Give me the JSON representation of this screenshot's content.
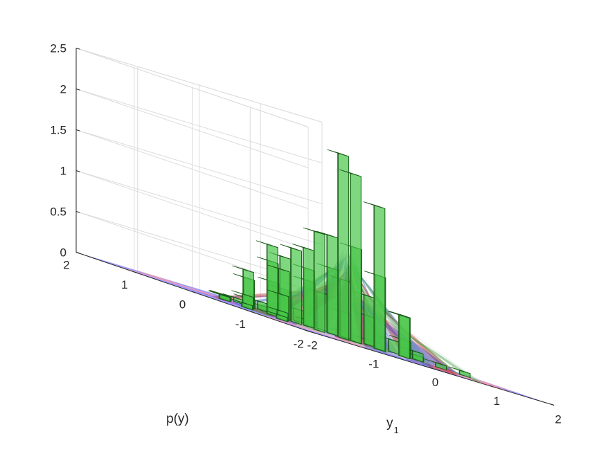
{
  "chart_data": {
    "type": "bar3d",
    "title": "",
    "xlabel": "y",
    "xlabel_subscript": "1",
    "ylabel": "p(y)",
    "zlabel": "",
    "xlim": [
      -2,
      2
    ],
    "ylim": [
      -2,
      2
    ],
    "zlim": [
      0,
      2.5
    ],
    "x_ticks": [
      "-2",
      "-1",
      "0",
      "1",
      "2"
    ],
    "y_ticks": [
      "-2",
      "-1",
      "0",
      "1",
      "2"
    ],
    "z_ticks": [
      "0",
      "0.5",
      "1",
      "1.5",
      "2",
      "2.5"
    ],
    "grid": true,
    "bin_width": 0.2,
    "bars": [
      {
        "x": -0.1,
        "y": -0.5,
        "z": 2.25
      },
      {
        "x": 0.1,
        "y": -0.5,
        "z": 2.05
      },
      {
        "x": 0.3,
        "y": -0.7,
        "z": 1.75
      },
      {
        "x": 0.3,
        "y": -0.3,
        "z": 1.15
      },
      {
        "x": -0.3,
        "y": -0.3,
        "z": 1.2
      },
      {
        "x": 0.1,
        "y": -0.1,
        "z": 1.2
      },
      {
        "x": -0.1,
        "y": 0.1,
        "z": 0.95
      },
      {
        "x": -0.3,
        "y": 0.1,
        "z": 0.9
      },
      {
        "x": 0.5,
        "y": -0.5,
        "z": 0.9
      },
      {
        "x": -0.5,
        "y": 0.3,
        "z": 0.85
      },
      {
        "x": 0.3,
        "y": 0.1,
        "z": 0.8
      },
      {
        "x": -0.1,
        "y": 0.5,
        "z": 0.75
      },
      {
        "x": 0.5,
        "y": 0.1,
        "z": 0.7
      },
      {
        "x": 0.1,
        "y": 0.3,
        "z": 0.7
      },
      {
        "x": -0.3,
        "y": 0.5,
        "z": 0.65
      },
      {
        "x": 0.7,
        "y": -0.1,
        "z": 0.6
      },
      {
        "x": -0.5,
        "y": 0.1,
        "z": 0.6
      },
      {
        "x": 0.3,
        "y": 0.5,
        "z": 0.55
      },
      {
        "x": 0.9,
        "y": -0.5,
        "z": 0.5
      },
      {
        "x": 0.7,
        "y": -0.7,
        "z": 0.5
      },
      {
        "x": -0.7,
        "y": 0.5,
        "z": 0.45
      },
      {
        "x": 0.5,
        "y": 0.5,
        "z": 0.45
      },
      {
        "x": -0.1,
        "y": 0.7,
        "z": 0.4
      },
      {
        "x": 0.1,
        "y": 0.7,
        "z": 0.35
      },
      {
        "x": 0.9,
        "y": 0.1,
        "z": 0.35
      },
      {
        "x": -0.5,
        "y": 0.7,
        "z": 0.35
      },
      {
        "x": 0.7,
        "y": 0.3,
        "z": 0.3
      },
      {
        "x": -0.7,
        "y": -0.1,
        "z": 0.3
      },
      {
        "x": 0.3,
        "y": 0.9,
        "z": 0.25
      },
      {
        "x": 1.1,
        "y": -0.3,
        "z": 0.2
      },
      {
        "x": 1.1,
        "y": -0.1,
        "z": 0.15
      },
      {
        "x": 1.3,
        "y": -0.3,
        "z": 0.1
      },
      {
        "x": -0.9,
        "y": 0.3,
        "z": 0.15
      },
      {
        "x": 0.5,
        "y": 0.9,
        "z": 0.15
      },
      {
        "x": -0.3,
        "y": 0.9,
        "z": 0.1
      },
      {
        "x": 0.1,
        "y": 1.1,
        "z": 0.1
      },
      {
        "x": -0.9,
        "y": -0.3,
        "z": 0.1
      },
      {
        "x": 0.9,
        "y": 0.5,
        "z": 0.05
      },
      {
        "x": 1.3,
        "y": -0.7,
        "z": 0.05
      },
      {
        "x": -0.7,
        "y": 0.9,
        "z": 0.05
      },
      {
        "x": -0.9,
        "y": 0.7,
        "z": 0.05
      },
      {
        "x": 1.5,
        "y": -0.1,
        "z": 0.05
      },
      {
        "x": -1.1,
        "y": 0.1,
        "z": 0.05
      },
      {
        "x": 0.7,
        "y": 0.9,
        "z": 0.05
      },
      {
        "x": -0.5,
        "y": 1.1,
        "z": 0.05
      },
      {
        "x": 0.3,
        "y": 1.3,
        "z": 0.05
      },
      {
        "x": 1.1,
        "y": 0.3,
        "z": 0.05
      },
      {
        "x": -1.1,
        "y": -0.5,
        "z": 0.05
      },
      {
        "x": 1.5,
        "y": -0.9,
        "z": 0.05
      },
      {
        "x": -0.1,
        "y": 1.3,
        "z": 0.05
      }
    ],
    "floor_regions": {
      "base_color": "#9a9aff",
      "pink_color": "#ff9aa6",
      "purple_color": "#8a5ad0",
      "pink_x_bands": [
        [
          -1.1,
          -0.7
        ],
        [
          0.9,
          1.5
        ]
      ],
      "pink_y_bands": [
        [
          -1.4,
          -0.9
        ],
        [
          1.1,
          1.5
        ]
      ]
    },
    "surface_colors": [
      "#c83030",
      "#3aa040",
      "#e8e8e8",
      "#4060d0"
    ],
    "bar_color": "#5ee05e"
  }
}
